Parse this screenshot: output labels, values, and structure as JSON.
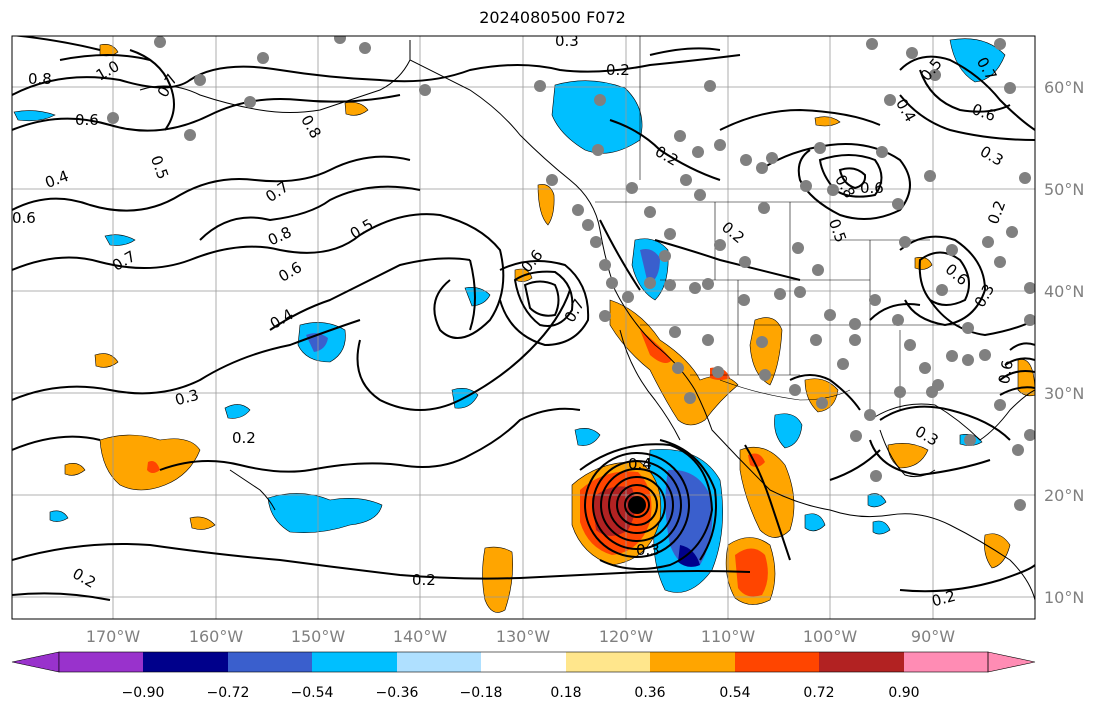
{
  "title": "2024080500 F072",
  "lat_labels": [
    "60°N",
    "50°N",
    "40°N",
    "30°N",
    "20°N",
    "10°N"
  ],
  "lon_labels": [
    "170°W",
    "160°W",
    "150°W",
    "140°W",
    "130°W",
    "120°W",
    "110°W",
    "100°W",
    "90°W"
  ],
  "colorbar": {
    "tick_labels": [
      "−0.90",
      "−0.72",
      "−0.54",
      "−0.36",
      "−0.18",
      "0.18",
      "0.36",
      "0.54",
      "0.72",
      "0.90"
    ],
    "colors": [
      "#9932cc",
      "#00008b",
      "#3a5fcd",
      "#00bfff",
      "#afe0ff",
      "#ffffff",
      "#ffe68c",
      "#ffa500",
      "#ff4500",
      "#b22222",
      "#ff8cb4"
    ]
  },
  "contour_labels": [
    "0.3",
    "0.2",
    "1.0",
    "0.8",
    "0.7",
    "0.6",
    "0.5",
    "0.4",
    "0.6",
    "0.8",
    "0.7",
    "0.8",
    "0.7",
    "0.6",
    "0.5",
    "0.4",
    "0.6",
    "0.7",
    "0.3",
    "0.2",
    "0.2",
    "0.2",
    "0.2",
    "0.4",
    "0.3",
    "0.2",
    "0.2",
    "0.6",
    "0.8",
    "0.5",
    "0.3",
    "0.4",
    "0.6",
    "0.3",
    "0.7",
    "0.6",
    "0.5",
    "0.2",
    "0.3",
    "0.6"
  ],
  "colors": {
    "station_dot": "#808080",
    "grid": "#999999",
    "contour": "#000000"
  }
}
